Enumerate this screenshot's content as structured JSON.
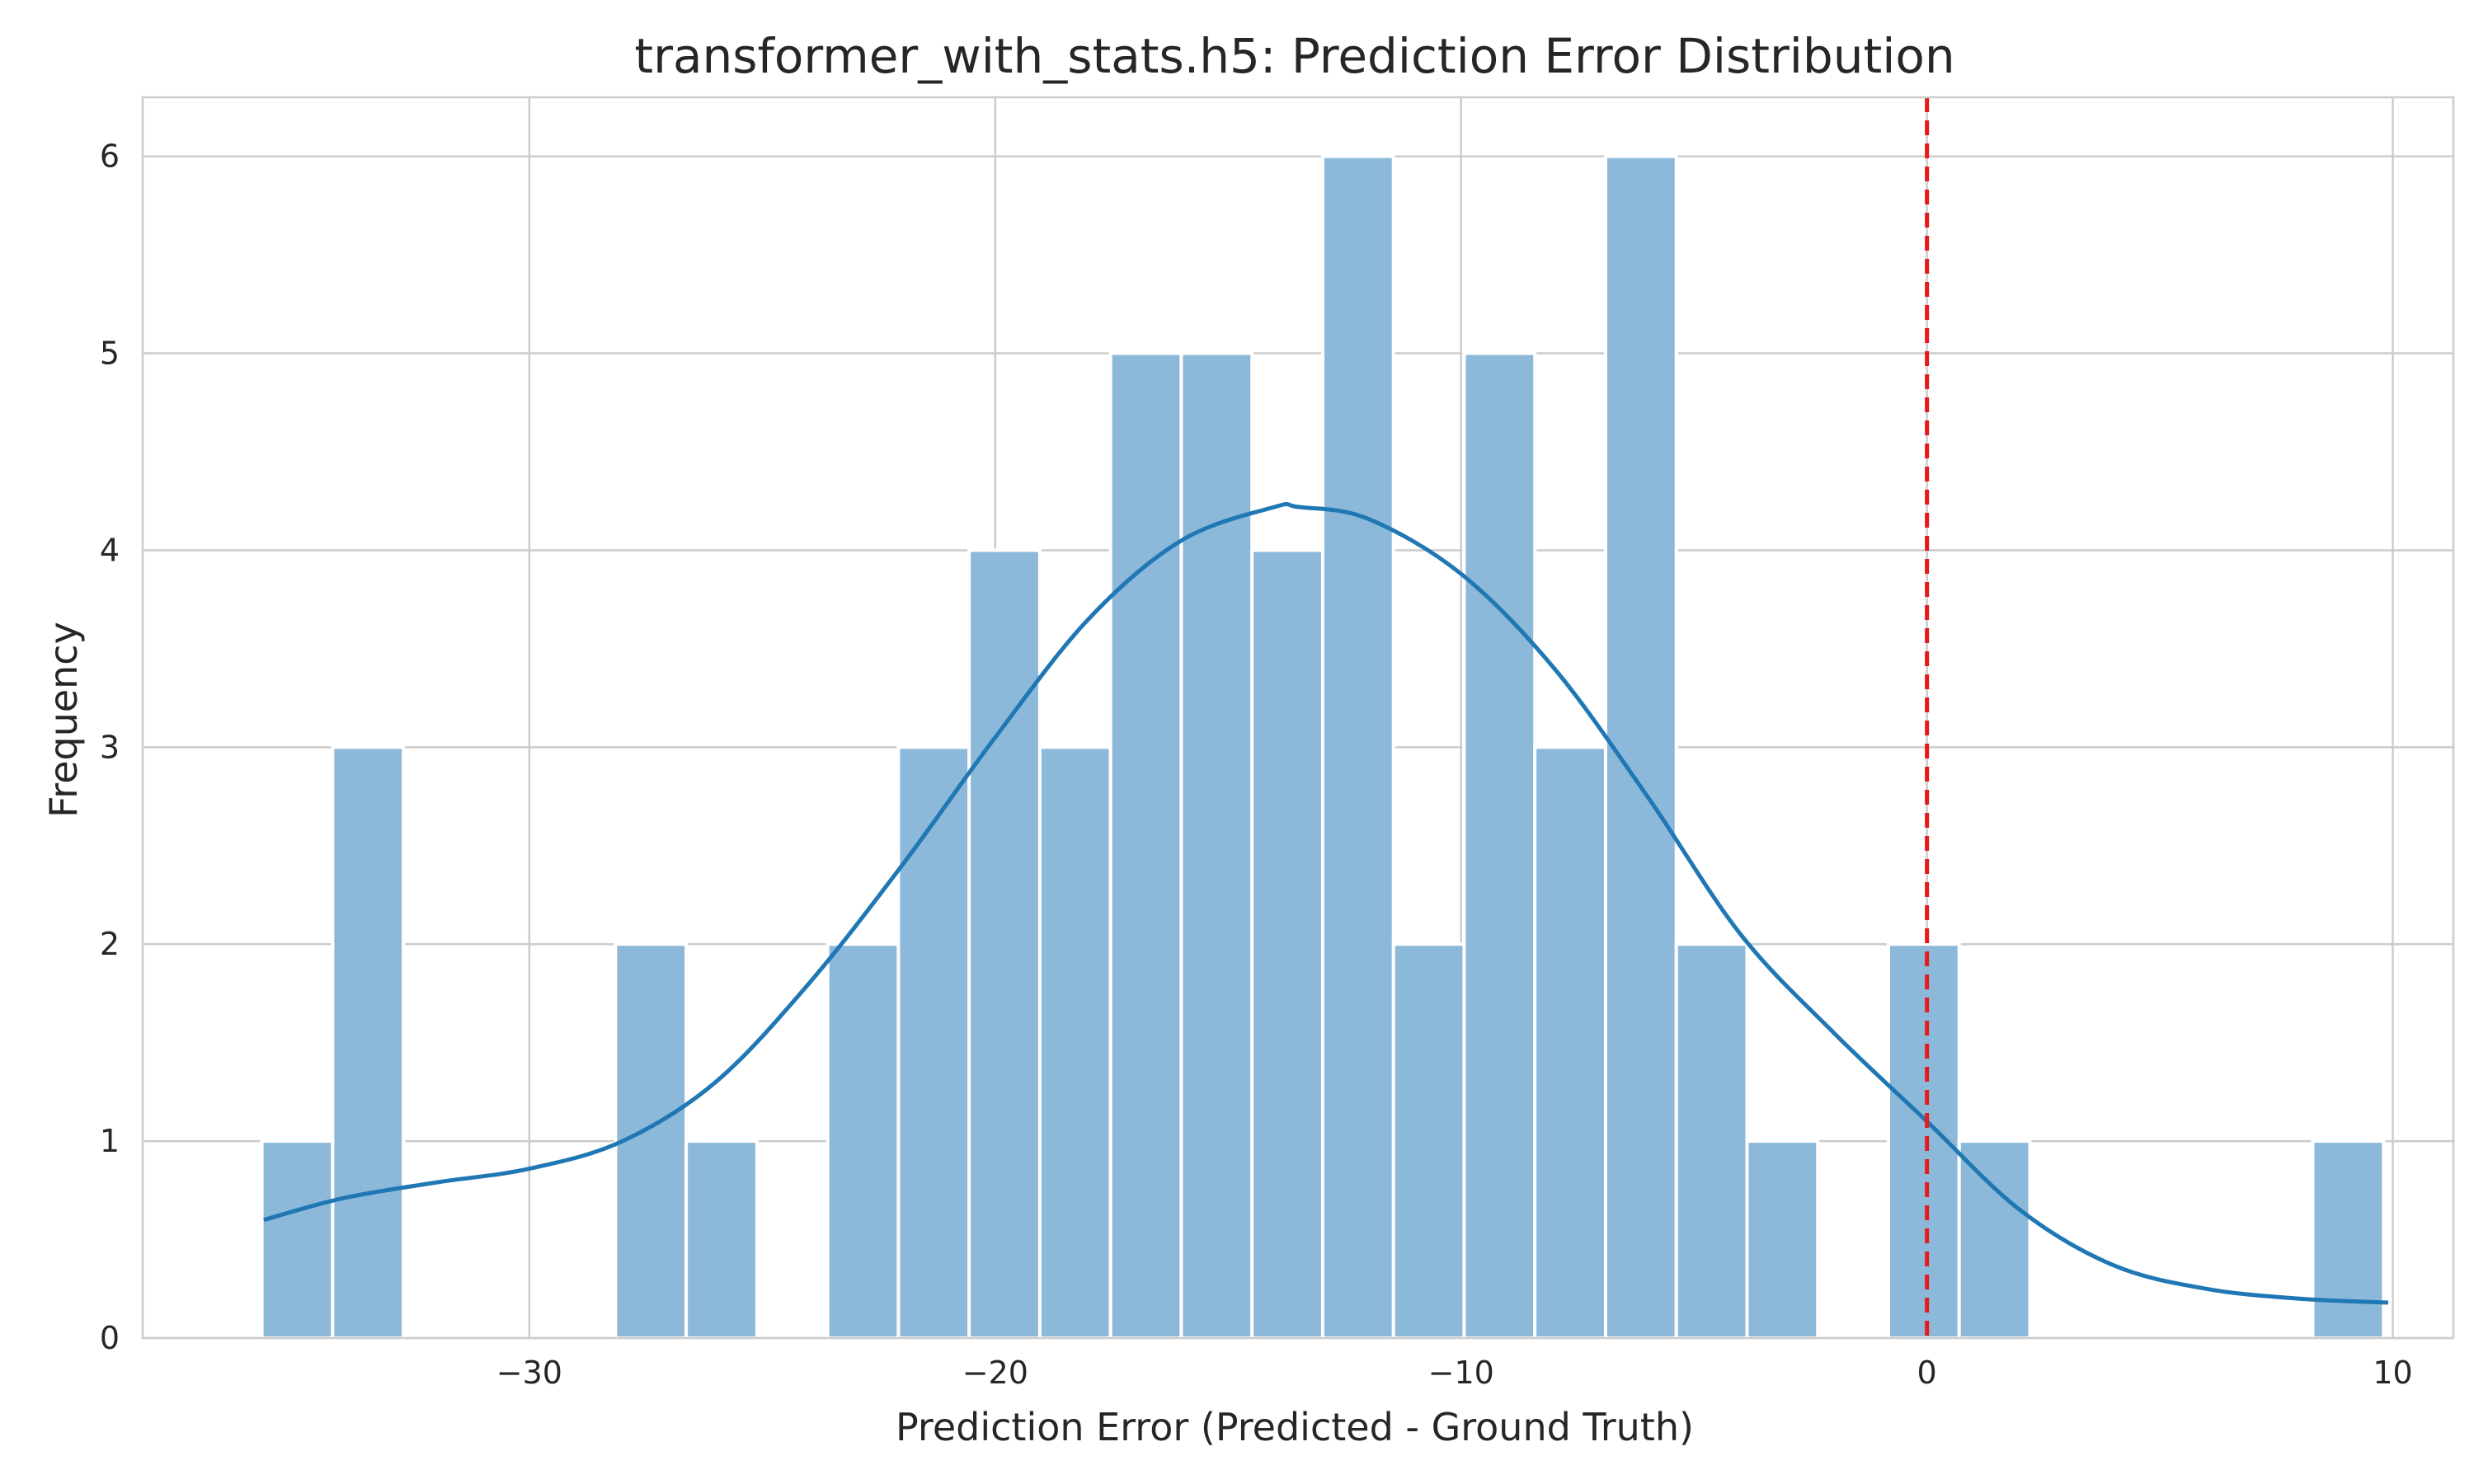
{
  "chart_data": {
    "type": "bar",
    "title": "transformer_with_stats.h5: Prediction Error Distribution",
    "xlabel": "Prediction Error (Predicted - Ground Truth)",
    "ylabel": "Frequency",
    "xlim": [
      -38.3,
      11.3
    ],
    "ylim": [
      0,
      6.3
    ],
    "xticks": [
      {
        "value": -30,
        "label": "−30"
      },
      {
        "value": -20,
        "label": "−20"
      },
      {
        "value": -10,
        "label": "−10"
      },
      {
        "value": 0,
        "label": "0"
      },
      {
        "value": 10,
        "label": "10"
      }
    ],
    "yticks": [
      {
        "value": 0,
        "label": "0"
      },
      {
        "value": 1,
        "label": "1"
      },
      {
        "value": 2,
        "label": "2"
      },
      {
        "value": 3,
        "label": "3"
      },
      {
        "value": 4,
        "label": "4"
      },
      {
        "value": 5,
        "label": "5"
      },
      {
        "value": 6,
        "label": "6"
      }
    ],
    "grid": true,
    "bin_start": -35.74,
    "bin_width": 1.518,
    "values": [
      1,
      3,
      0,
      0,
      0,
      2,
      1,
      0,
      2,
      3,
      4,
      3,
      5,
      5,
      4,
      6,
      2,
      5,
      3,
      6,
      2,
      1,
      0,
      2,
      1,
      0,
      0,
      0,
      0,
      1
    ],
    "kde": {
      "x": [
        -35.7,
        -34,
        -32,
        -30,
        -28,
        -26,
        -24,
        -22,
        -20,
        -18,
        -16,
        -14,
        -13.5,
        -12,
        -10,
        -8,
        -6,
        -4,
        -2,
        0,
        2,
        4,
        6,
        8,
        9.9
      ],
      "y": [
        0.6,
        0.71,
        0.79,
        0.86,
        1.0,
        1.3,
        1.8,
        2.4,
        3.05,
        3.65,
        4.05,
        4.22,
        4.22,
        4.16,
        3.88,
        3.4,
        2.75,
        2.05,
        1.55,
        1.1,
        0.65,
        0.37,
        0.25,
        0.2,
        0.18
      ]
    },
    "reference_line": {
      "x": 0,
      "style": "dashed"
    },
    "colors": {
      "bar": "#8cb8d9",
      "kde": "#1f77b4",
      "reference_line": "#e41a1c"
    }
  }
}
